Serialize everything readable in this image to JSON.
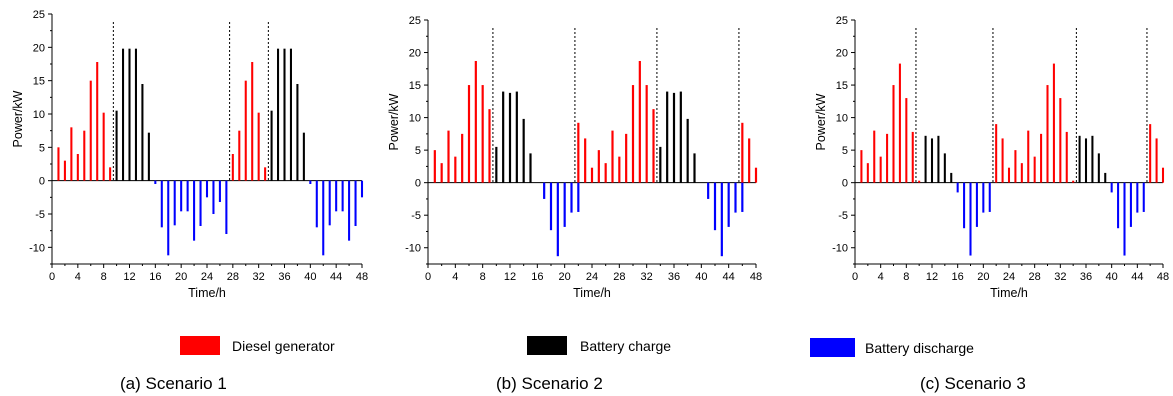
{
  "legend": [
    {
      "label": "Diesel generator",
      "color": "#ff0000"
    },
    {
      "label": "Battery charge",
      "color": "#000000"
    },
    {
      "label": "Battery discharge",
      "color": "#0000ff"
    }
  ],
  "chart_data": [
    {
      "type": "bar",
      "caption": "(a) Scenario 1",
      "xlabel": "Time/h",
      "ylabel": "Power/kW",
      "xlim": [
        0,
        48
      ],
      "ylim": [
        -12.5,
        25
      ],
      "xticks": [
        0,
        4,
        8,
        12,
        16,
        20,
        24,
        28,
        32,
        36,
        40,
        44,
        48
      ],
      "yticks": [
        -10,
        -5,
        0,
        5,
        10,
        15,
        20,
        25
      ],
      "x": [
        1,
        2,
        3,
        4,
        5,
        6,
        7,
        8,
        9,
        10,
        11,
        12,
        13,
        14,
        15,
        16,
        17,
        18,
        19,
        20,
        21,
        22,
        23,
        24,
        25,
        26,
        27,
        28,
        29,
        30,
        31,
        32,
        33,
        34,
        35,
        36,
        37,
        38,
        39,
        40,
        41,
        42,
        43,
        44,
        45,
        46,
        47,
        48
      ],
      "series": [
        {
          "name": "Diesel generator",
          "color": "#ff0000",
          "values": [
            5,
            3,
            8,
            4,
            7.5,
            15,
            17.8,
            10.2,
            2,
            0,
            0,
            0,
            0,
            0,
            0,
            0,
            0,
            0,
            0,
            0,
            0,
            0,
            0,
            0,
            0,
            0,
            0,
            4,
            7.5,
            15,
            17.8,
            10.2,
            2,
            0,
            0,
            0,
            0,
            0,
            0,
            0,
            0,
            0,
            0,
            0,
            0,
            0,
            0,
            0
          ]
        },
        {
          "name": "Battery charge",
          "color": "#000000",
          "values": [
            0,
            0,
            0,
            0,
            0,
            0,
            0,
            0,
            0,
            10.5,
            19.8,
            19.8,
            19.8,
            14.5,
            7.2,
            0,
            0,
            0,
            0,
            0,
            0,
            0,
            0,
            0,
            0,
            0,
            0,
            0,
            0,
            0,
            0,
            0,
            0,
            10.5,
            19.8,
            19.8,
            19.8,
            14.5,
            7.2,
            0,
            0,
            0,
            0,
            0,
            0,
            0,
            0,
            0
          ]
        },
        {
          "name": "Battery discharge",
          "color": "#0000ff",
          "values": [
            0,
            0,
            0,
            0,
            0,
            0,
            0,
            0,
            0,
            0,
            0,
            0,
            0,
            0,
            0,
            -0.5,
            -7,
            -11.2,
            -6.7,
            -4.6,
            -4.6,
            -9,
            -6.8,
            -2.5,
            -5,
            -3.2,
            -8,
            0,
            0,
            0,
            0,
            0,
            0,
            0,
            0,
            0,
            0,
            0,
            0,
            -0.5,
            -7,
            -11.2,
            -6.7,
            -4.6,
            -4.6,
            -9,
            -6.8,
            -2.5
          ]
        }
      ],
      "dividers": [
        9.5,
        27.5,
        33.5
      ]
    },
    {
      "type": "bar",
      "caption": "(b) Scenario 2",
      "xlabel": "Time/h",
      "ylabel": "Power/kW",
      "xlim": [
        0,
        48
      ],
      "ylim": [
        -12.5,
        25
      ],
      "xticks": [
        0,
        4,
        8,
        12,
        16,
        20,
        24,
        28,
        32,
        36,
        40,
        44,
        48
      ],
      "yticks": [
        -10,
        -5,
        0,
        5,
        10,
        15,
        20,
        25
      ],
      "x": [
        1,
        2,
        3,
        4,
        5,
        6,
        7,
        8,
        9,
        10,
        11,
        12,
        13,
        14,
        15,
        16,
        17,
        18,
        19,
        20,
        21,
        22,
        23,
        24,
        25,
        26,
        27,
        28,
        29,
        30,
        31,
        32,
        33,
        34,
        35,
        36,
        37,
        38,
        39,
        40,
        41,
        42,
        43,
        44,
        45,
        46,
        47,
        48
      ],
      "series": [
        {
          "name": "Diesel generator",
          "color": "#ff0000",
          "values": [
            5,
            3,
            8,
            4,
            7.5,
            15,
            18.7,
            15,
            11.3,
            0,
            0,
            0,
            0,
            0,
            0,
            0,
            0,
            0,
            0,
            0,
            0,
            9.2,
            6.8,
            2.3,
            5,
            3,
            8,
            4,
            7.5,
            15,
            18.7,
            15,
            11.3,
            0,
            0,
            0,
            0,
            0,
            0,
            0,
            0,
            0,
            0,
            0,
            0,
            9.2,
            6.8,
            2.3
          ]
        },
        {
          "name": "Battery charge",
          "color": "#000000",
          "values": [
            0,
            0,
            0,
            0,
            0,
            0,
            0,
            0,
            0,
            5.5,
            14,
            13.8,
            14,
            9.8,
            4.5,
            0,
            0,
            0,
            0,
            0,
            0,
            0,
            0,
            0,
            0,
            0,
            0,
            0,
            0,
            0,
            0,
            0,
            0,
            5.5,
            14,
            13.8,
            14,
            9.8,
            4.5,
            0,
            0,
            0,
            0,
            0,
            0,
            0,
            0,
            0
          ]
        },
        {
          "name": "Battery discharge",
          "color": "#0000ff",
          "values": [
            0,
            0,
            0,
            0,
            0,
            0,
            0,
            0,
            0,
            0,
            0,
            0,
            0,
            0,
            0,
            0,
            -2.5,
            -7.3,
            -11.3,
            -6.8,
            -4.6,
            -4.5,
            0,
            0,
            0,
            0,
            0,
            0,
            0,
            0,
            0,
            0,
            0,
            0,
            0,
            0,
            0,
            0,
            0,
            0,
            -2.5,
            -7.3,
            -11.3,
            -6.8,
            -4.6,
            -4.5,
            0,
            0
          ]
        }
      ],
      "dividers": [
        9.5,
        21.5,
        33.5,
        45.5
      ]
    },
    {
      "type": "bar",
      "caption": "(c) Scenario 3",
      "xlabel": "Time/h",
      "ylabel": "Power/kW",
      "xlim": [
        0,
        48
      ],
      "ylim": [
        -12.5,
        25
      ],
      "xticks": [
        0,
        4,
        8,
        12,
        16,
        20,
        24,
        28,
        32,
        36,
        40,
        44,
        48
      ],
      "yticks": [
        -10,
        -5,
        0,
        5,
        10,
        15,
        20,
        25
      ],
      "x": [
        1,
        2,
        3,
        4,
        5,
        6,
        7,
        8,
        9,
        10,
        11,
        12,
        13,
        14,
        15,
        16,
        17,
        18,
        19,
        20,
        21,
        22,
        23,
        24,
        25,
        26,
        27,
        28,
        29,
        30,
        31,
        32,
        33,
        34,
        35,
        36,
        37,
        38,
        39,
        40,
        41,
        42,
        43,
        44,
        45,
        46,
        47,
        48
      ],
      "series": [
        {
          "name": "Diesel generator",
          "color": "#ff0000",
          "values": [
            5,
            3,
            8,
            4,
            7.5,
            15,
            18.3,
            13,
            7.8,
            0.3,
            0,
            0,
            0,
            0,
            0,
            0,
            0,
            0,
            0,
            0,
            0,
            9,
            6.8,
            2.3,
            5,
            3,
            8,
            4,
            7.5,
            15,
            18.3,
            13,
            7.8,
            0.3,
            0,
            0,
            0,
            0,
            0,
            0,
            0,
            0,
            0,
            0,
            0,
            9,
            6.8,
            2.3
          ]
        },
        {
          "name": "Battery charge",
          "color": "#000000",
          "values": [
            0,
            0,
            0,
            0,
            0,
            0,
            0,
            0,
            0,
            0,
            7.2,
            6.8,
            7.2,
            4.5,
            1.5,
            0,
            0,
            0,
            0,
            0,
            0,
            0,
            0,
            0,
            0,
            0,
            0,
            0,
            0,
            0,
            0,
            0,
            0,
            0,
            7.2,
            6.8,
            7.2,
            4.5,
            1.5,
            0,
            0,
            0,
            0,
            0,
            0,
            0,
            0,
            0
          ]
        },
        {
          "name": "Battery discharge",
          "color": "#0000ff",
          "values": [
            0,
            0,
            0,
            0,
            0,
            0,
            0,
            0,
            0,
            0,
            0,
            0,
            0,
            0,
            0,
            -1.5,
            -7,
            -11.2,
            -6.8,
            -4.6,
            -4.5,
            0,
            0,
            0,
            0,
            0,
            0,
            0,
            0,
            0,
            0,
            0,
            0,
            0,
            0,
            0,
            0,
            0,
            0,
            -1.5,
            -7,
            -11.2,
            -6.8,
            -4.6,
            -4.5,
            0,
            0,
            0
          ]
        }
      ],
      "dividers": [
        9.5,
        21.5,
        34.5,
        45.5
      ]
    }
  ]
}
